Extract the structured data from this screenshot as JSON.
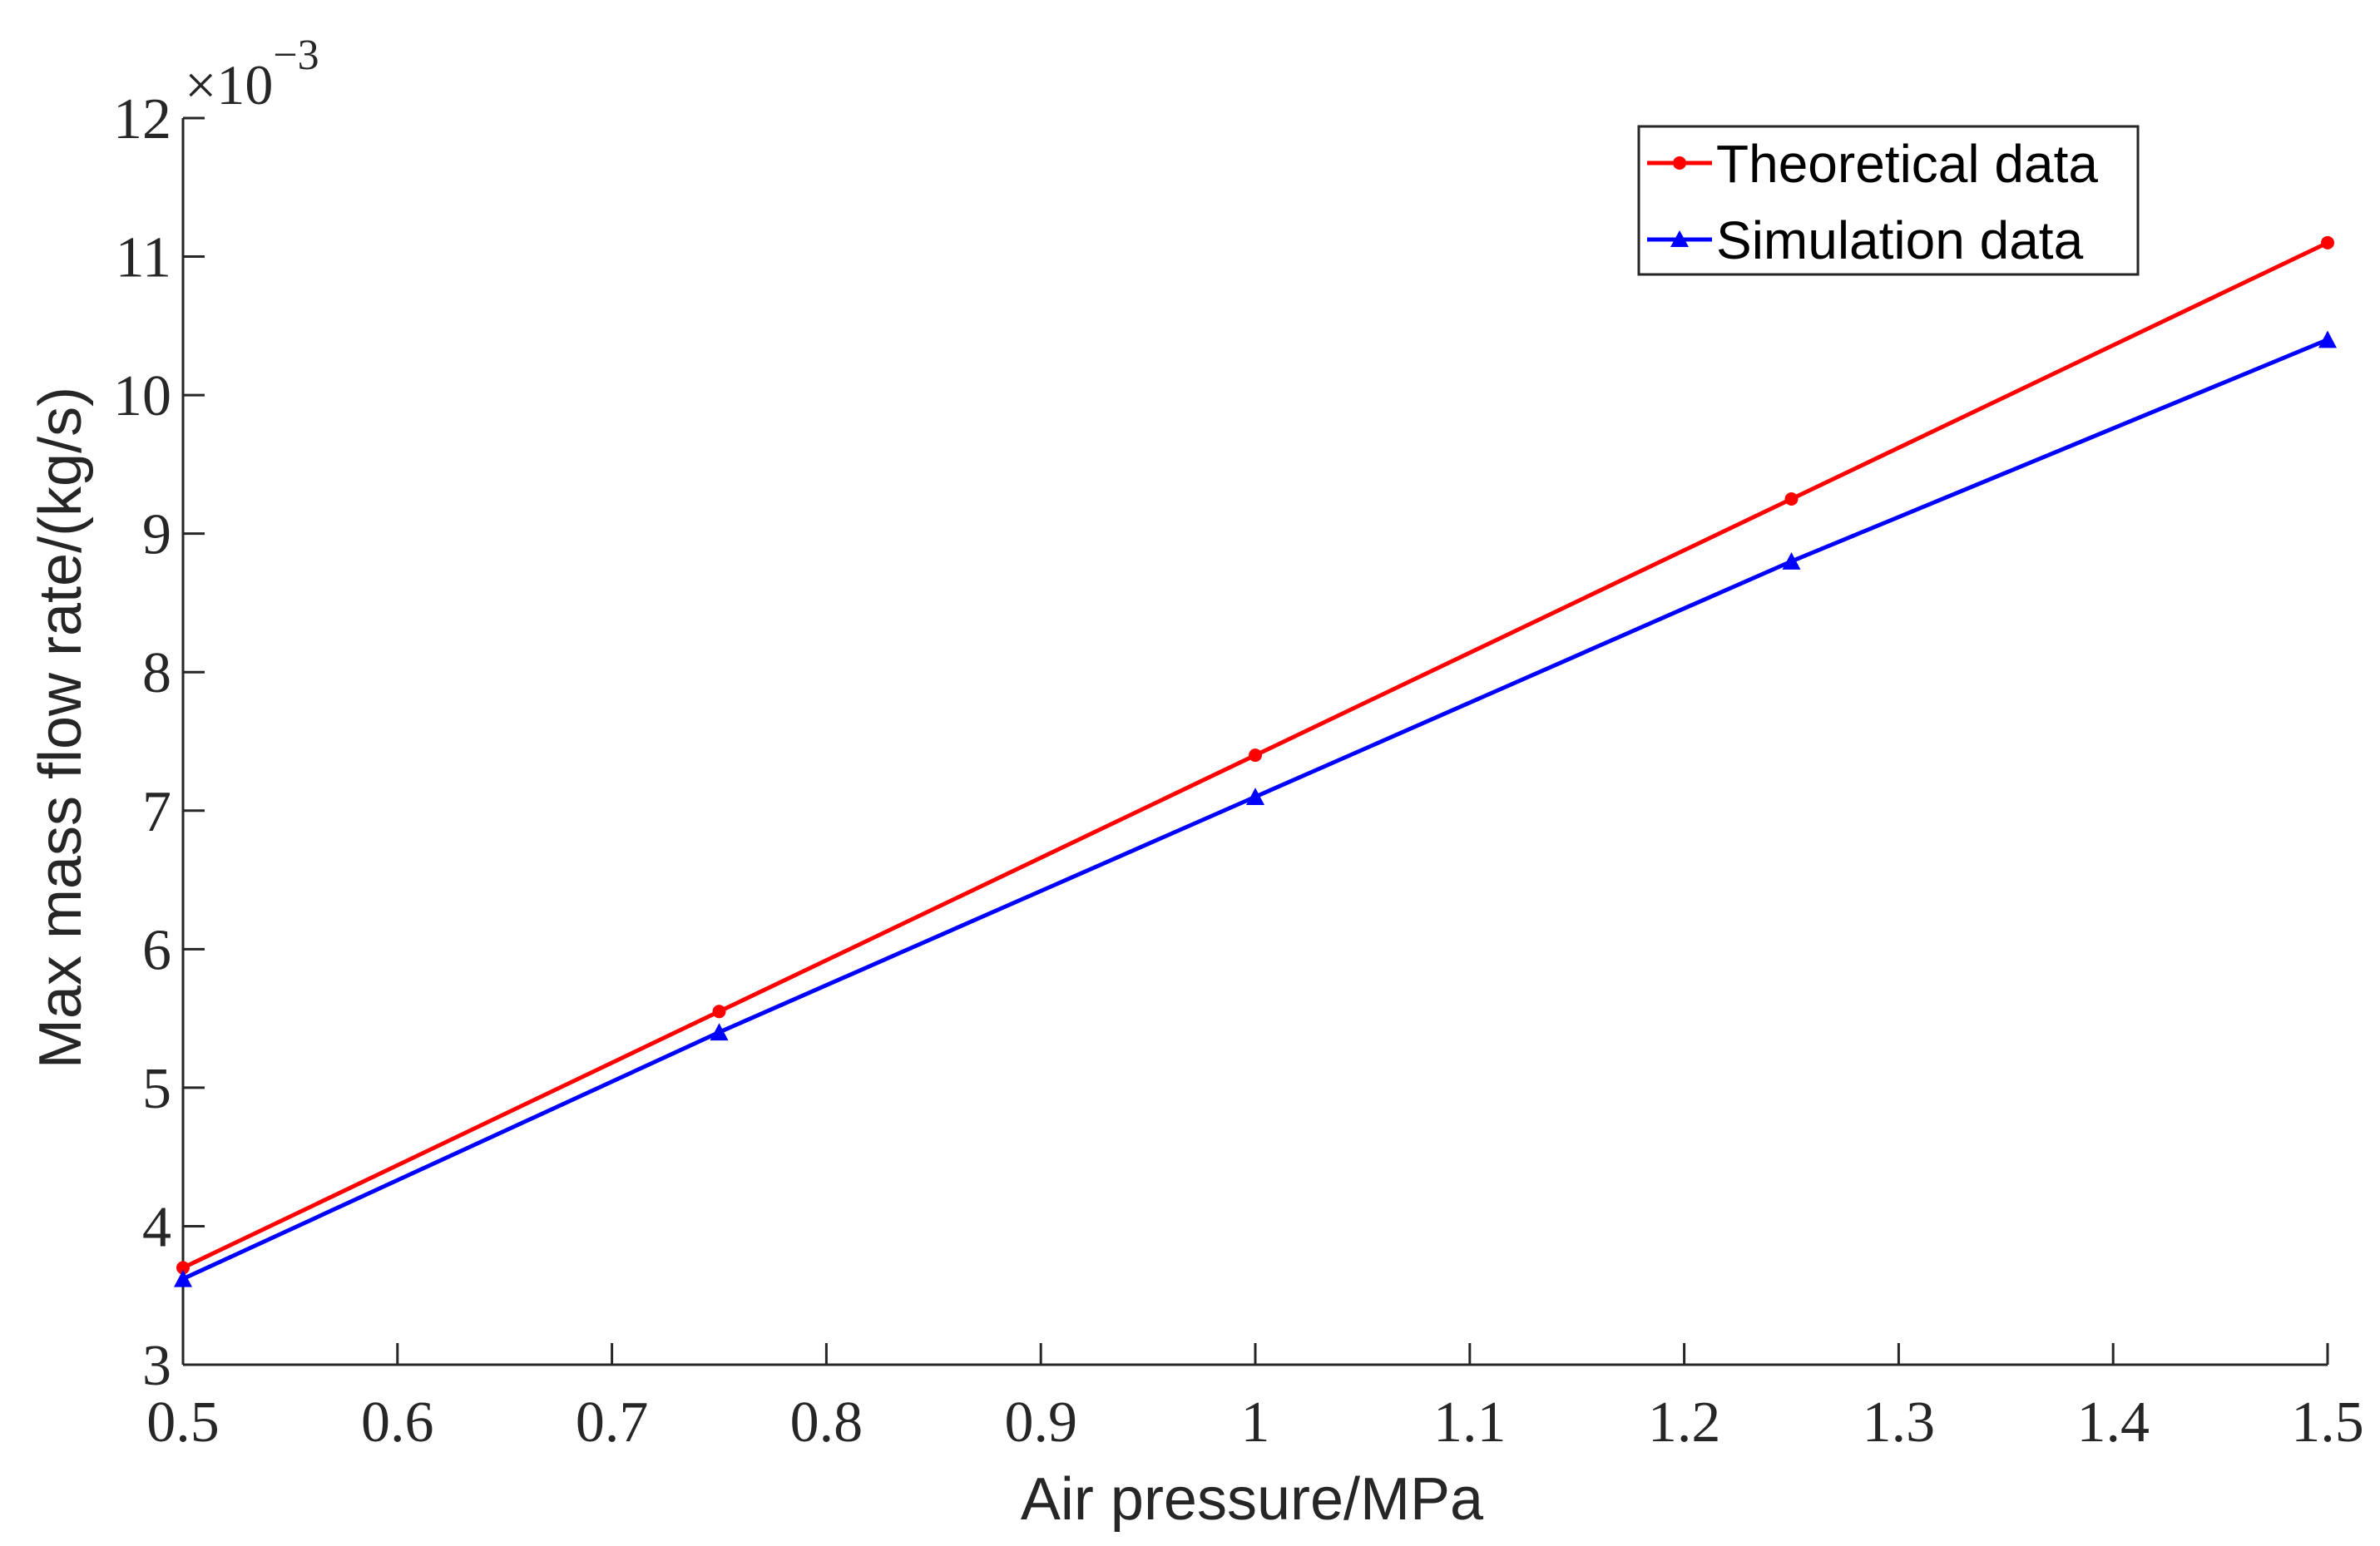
{
  "chart_data": {
    "type": "line",
    "title": "",
    "xlabel": "Air pressure/MPa",
    "ylabel": "Max mass flow rate/(kg/s)",
    "y_exponent": {
      "base": "×10",
      "power": "−3"
    },
    "xlim": [
      0.5,
      1.5
    ],
    "ylim": [
      3,
      12
    ],
    "xticks": [
      0.5,
      0.6,
      0.7,
      0.8,
      0.9,
      1.0,
      1.1,
      1.2,
      1.3,
      1.4,
      1.5
    ],
    "xtick_labels": [
      "0.5",
      "0.6",
      "0.7",
      "0.8",
      "0.9",
      "1",
      "1.1",
      "1.2",
      "1.3",
      "1.4",
      "1.5"
    ],
    "yticks": [
      3,
      4,
      5,
      6,
      7,
      8,
      9,
      10,
      11,
      12
    ],
    "ytick_labels": [
      "3",
      "4",
      "5",
      "6",
      "7",
      "8",
      "9",
      "10",
      "11",
      "12"
    ],
    "grid": false,
    "legend_position": "top-right",
    "x": [
      0.5,
      0.75,
      1.0,
      1.25,
      1.5
    ],
    "series": [
      {
        "name": "Theoretical data",
        "color": "#ff0000",
        "marker": "dot",
        "values": [
          3.7,
          5.55,
          7.4,
          9.25,
          11.1
        ]
      },
      {
        "name": "Simulation data",
        "color": "#0000ff",
        "marker": "triangle",
        "values": [
          3.62,
          5.4,
          7.1,
          8.8,
          10.4
        ]
      }
    ]
  }
}
